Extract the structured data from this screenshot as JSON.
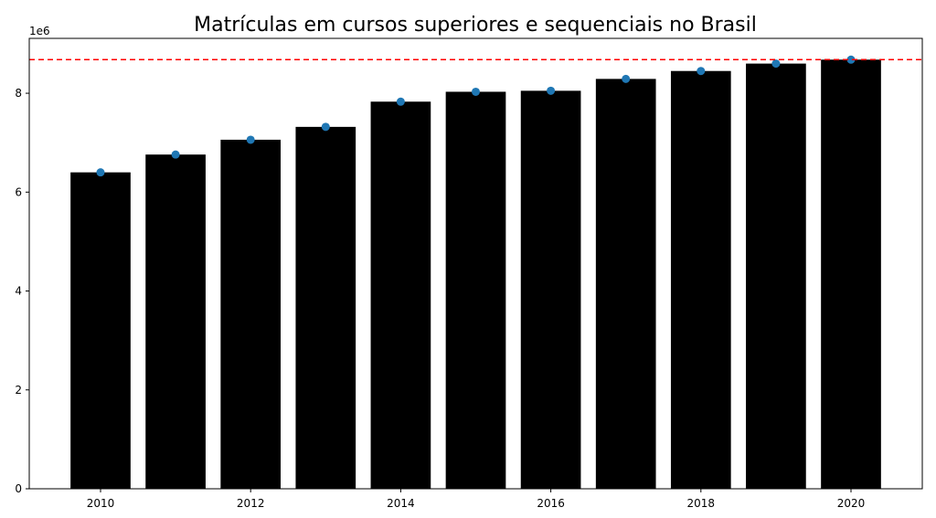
{
  "chart_data": {
    "type": "bar",
    "title": "Matrículas em cursos superiores e sequenciais no Brasil",
    "xlabel": "",
    "ylabel": "",
    "y_offset_label": "1e6",
    "x": [
      2010,
      2011,
      2012,
      2013,
      2014,
      2015,
      2016,
      2017,
      2018,
      2019,
      2020
    ],
    "values": [
      6.4,
      6.76,
      7.06,
      7.32,
      7.83,
      8.03,
      8.05,
      8.29,
      8.45,
      8.6,
      8.68
    ],
    "xlim": [
      2009.05,
      2020.95
    ],
    "ylim": [
      0,
      9.11
    ],
    "x_ticks": [
      2010,
      2012,
      2014,
      2016,
      2018,
      2020
    ],
    "y_ticks": [
      0,
      2,
      4,
      6,
      8
    ],
    "reference_line": 8.68,
    "grid": false,
    "colors": {
      "bar": "#000000",
      "marker": "#1f77b4",
      "reference_line": "#ff0000"
    }
  }
}
